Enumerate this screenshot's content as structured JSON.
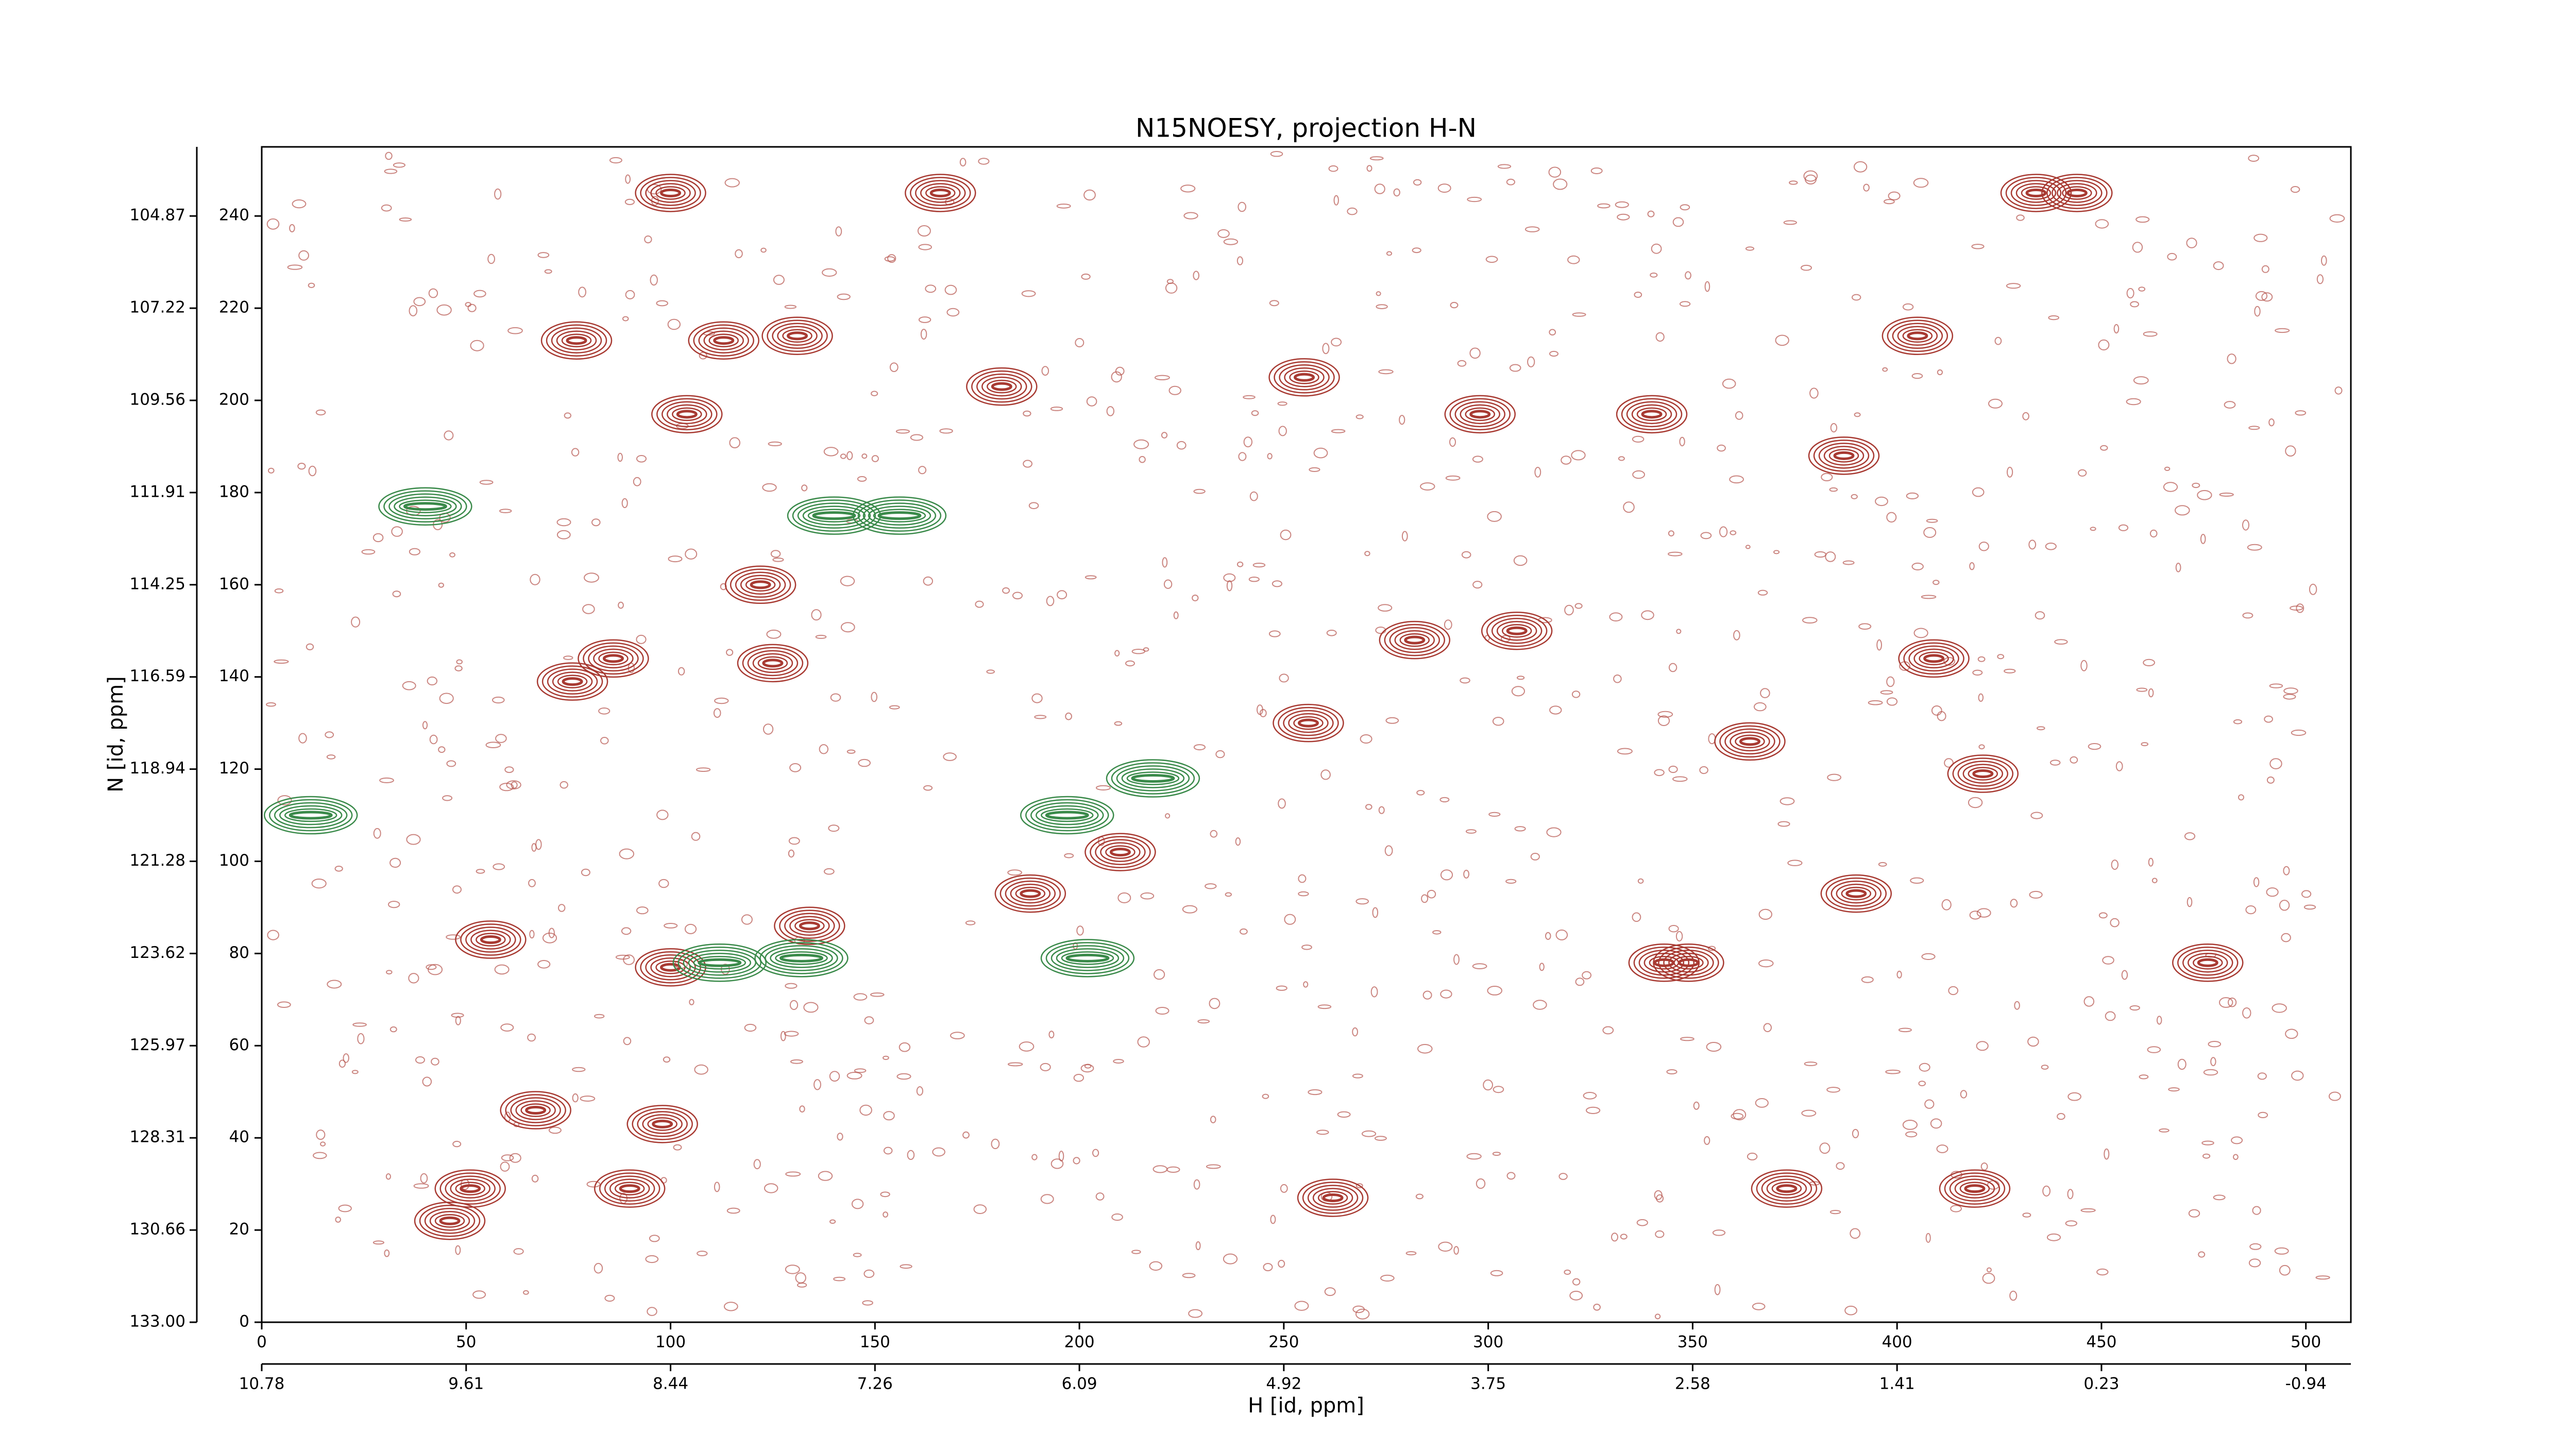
{
  "chart_data": {
    "type": "contour",
    "title": "N15NOESY, projection H-N",
    "xlabel": "H [id, ppm]",
    "ylabel": "N [id, ppm]",
    "xlim": [
      0,
      511
    ],
    "ylim": [
      0,
      255
    ],
    "xticks": [
      0,
      50,
      100,
      150,
      200,
      250,
      300,
      350,
      400,
      450,
      500
    ],
    "yticks": [
      0,
      20,
      40,
      60,
      80,
      100,
      120,
      140,
      160,
      180,
      200,
      220,
      240
    ],
    "secondary_xticks": [
      {
        "value": 0,
        "label": "10.78"
      },
      {
        "value": 50,
        "label": "9.61"
      },
      {
        "value": 100,
        "label": "8.44"
      },
      {
        "value": 150,
        "label": "7.26"
      },
      {
        "value": 200,
        "label": "6.09"
      },
      {
        "value": 250,
        "label": "4.92"
      },
      {
        "value": 300,
        "label": "3.75"
      },
      {
        "value": 350,
        "label": "2.58"
      },
      {
        "value": 400,
        "label": "1.41"
      },
      {
        "value": 450,
        "label": "0.23"
      },
      {
        "value": 500,
        "label": "-0.94"
      }
    ],
    "secondary_yticks": [
      {
        "value": 0,
        "label": "133.00"
      },
      {
        "value": 20,
        "label": "130.66"
      },
      {
        "value": 40,
        "label": "128.31"
      },
      {
        "value": 60,
        "label": "125.97"
      },
      {
        "value": 80,
        "label": "123.62"
      },
      {
        "value": 100,
        "label": "121.28"
      },
      {
        "value": 120,
        "label": "118.94"
      },
      {
        "value": 140,
        "label": "116.59"
      },
      {
        "value": 160,
        "label": "114.25"
      },
      {
        "value": 180,
        "label": "111.91"
      },
      {
        "value": 200,
        "label": "109.56"
      },
      {
        "value": 220,
        "label": "107.22"
      },
      {
        "value": 240,
        "label": "104.87"
      }
    ],
    "series": [
      {
        "color": "#a83a32",
        "x": [
          166,
          100,
          77,
          113,
          131,
          104,
          181,
          255,
          298,
          405,
          340,
          122,
          86,
          76,
          125,
          100,
          134,
          56,
          51,
          46,
          90,
          98,
          67,
          188,
          210,
          390,
          373,
          419,
          262,
          307,
          421,
          343,
          349,
          476,
          434,
          444,
          282,
          256,
          364,
          409,
          387
        ],
        "y": [
          245,
          245,
          213,
          213,
          214,
          197,
          203,
          205,
          197,
          214,
          197,
          160,
          144,
          139,
          143,
          77,
          86,
          83,
          29,
          22,
          29,
          43,
          46,
          93,
          102,
          93,
          29,
          29,
          27,
          150,
          119,
          78,
          78,
          78,
          245,
          245,
          148,
          130,
          126,
          144,
          188
        ]
      },
      {
        "color": "#3a8a4a",
        "x": [
          40,
          156,
          202,
          132,
          197,
          218,
          12,
          112,
          140
        ],
        "y": [
          177,
          175,
          79,
          79,
          110,
          118,
          110,
          78,
          175
        ]
      }
    ]
  }
}
